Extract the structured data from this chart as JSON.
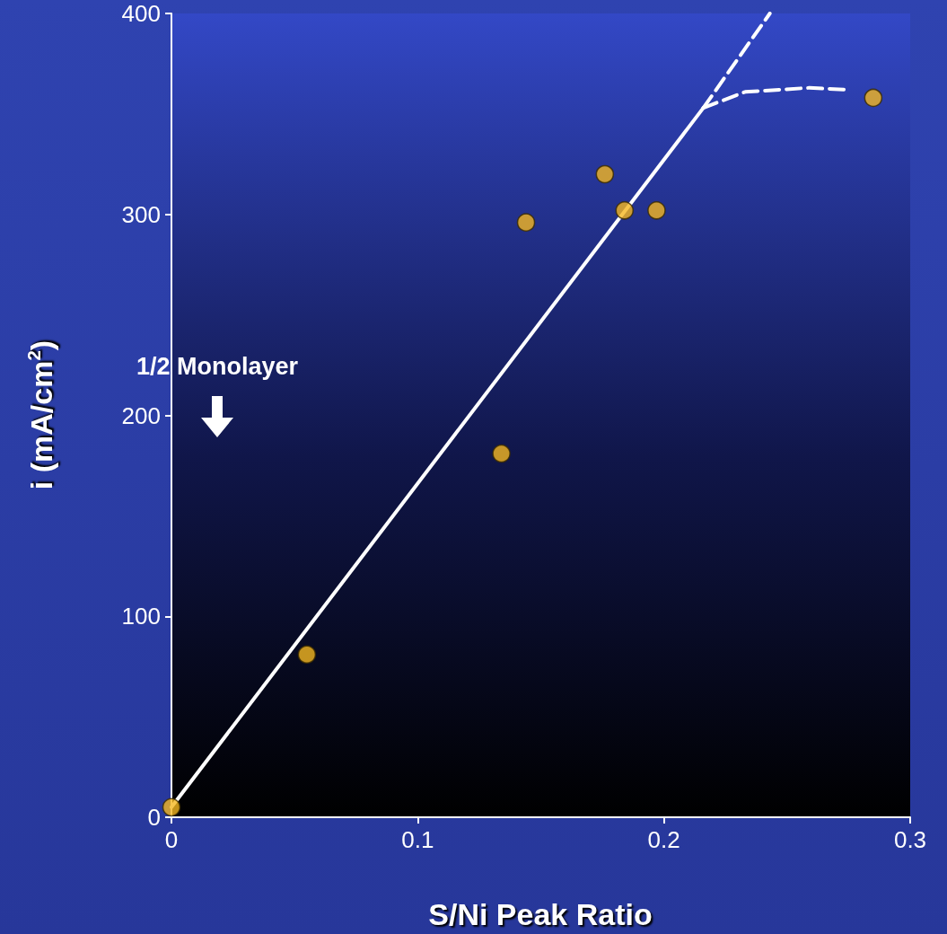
{
  "chart_data": {
    "type": "scatter",
    "xlabel": "S/Ni Peak Ratio",
    "ylabel": "i (mA/cm$^{2}$)",
    "xlim": [
      0,
      0.3
    ],
    "xticks": [
      0,
      0.1,
      0.2,
      0.3
    ],
    "ylim": [
      0,
      400
    ],
    "yticks": [
      0,
      100,
      200,
      300,
      400
    ],
    "grid": false,
    "annotations": [
      "1/2 Monolayer"
    ],
    "series": [
      {
        "type": "line",
        "color": "#ffffff",
        "x": [
          0,
          0.216
        ],
        "values": [
          5,
          353
        ],
        "marker": "none",
        "line_style": "solid"
      },
      {
        "type": "line",
        "color": "#ffffff",
        "x": [
          0.216,
          0.243
        ],
        "values": [
          353,
          400
        ],
        "marker": "none",
        "line_style": "dashed"
      },
      {
        "type": "line",
        "color": "#ffffff",
        "x": [
          0.216,
          0.233,
          0.259,
          0.275
        ],
        "values": [
          353,
          361,
          363,
          362
        ],
        "marker": "none",
        "line_style": "dashed"
      },
      {
        "color": "#f5b820",
        "x": [
          0,
          0.055,
          0.134,
          0.144,
          0.176,
          0.184,
          0.197,
          0.285
        ],
        "values": [
          5,
          81,
          181,
          296,
          320,
          302,
          302,
          358
        ],
        "marker": "circle"
      }
    ]
  }
}
